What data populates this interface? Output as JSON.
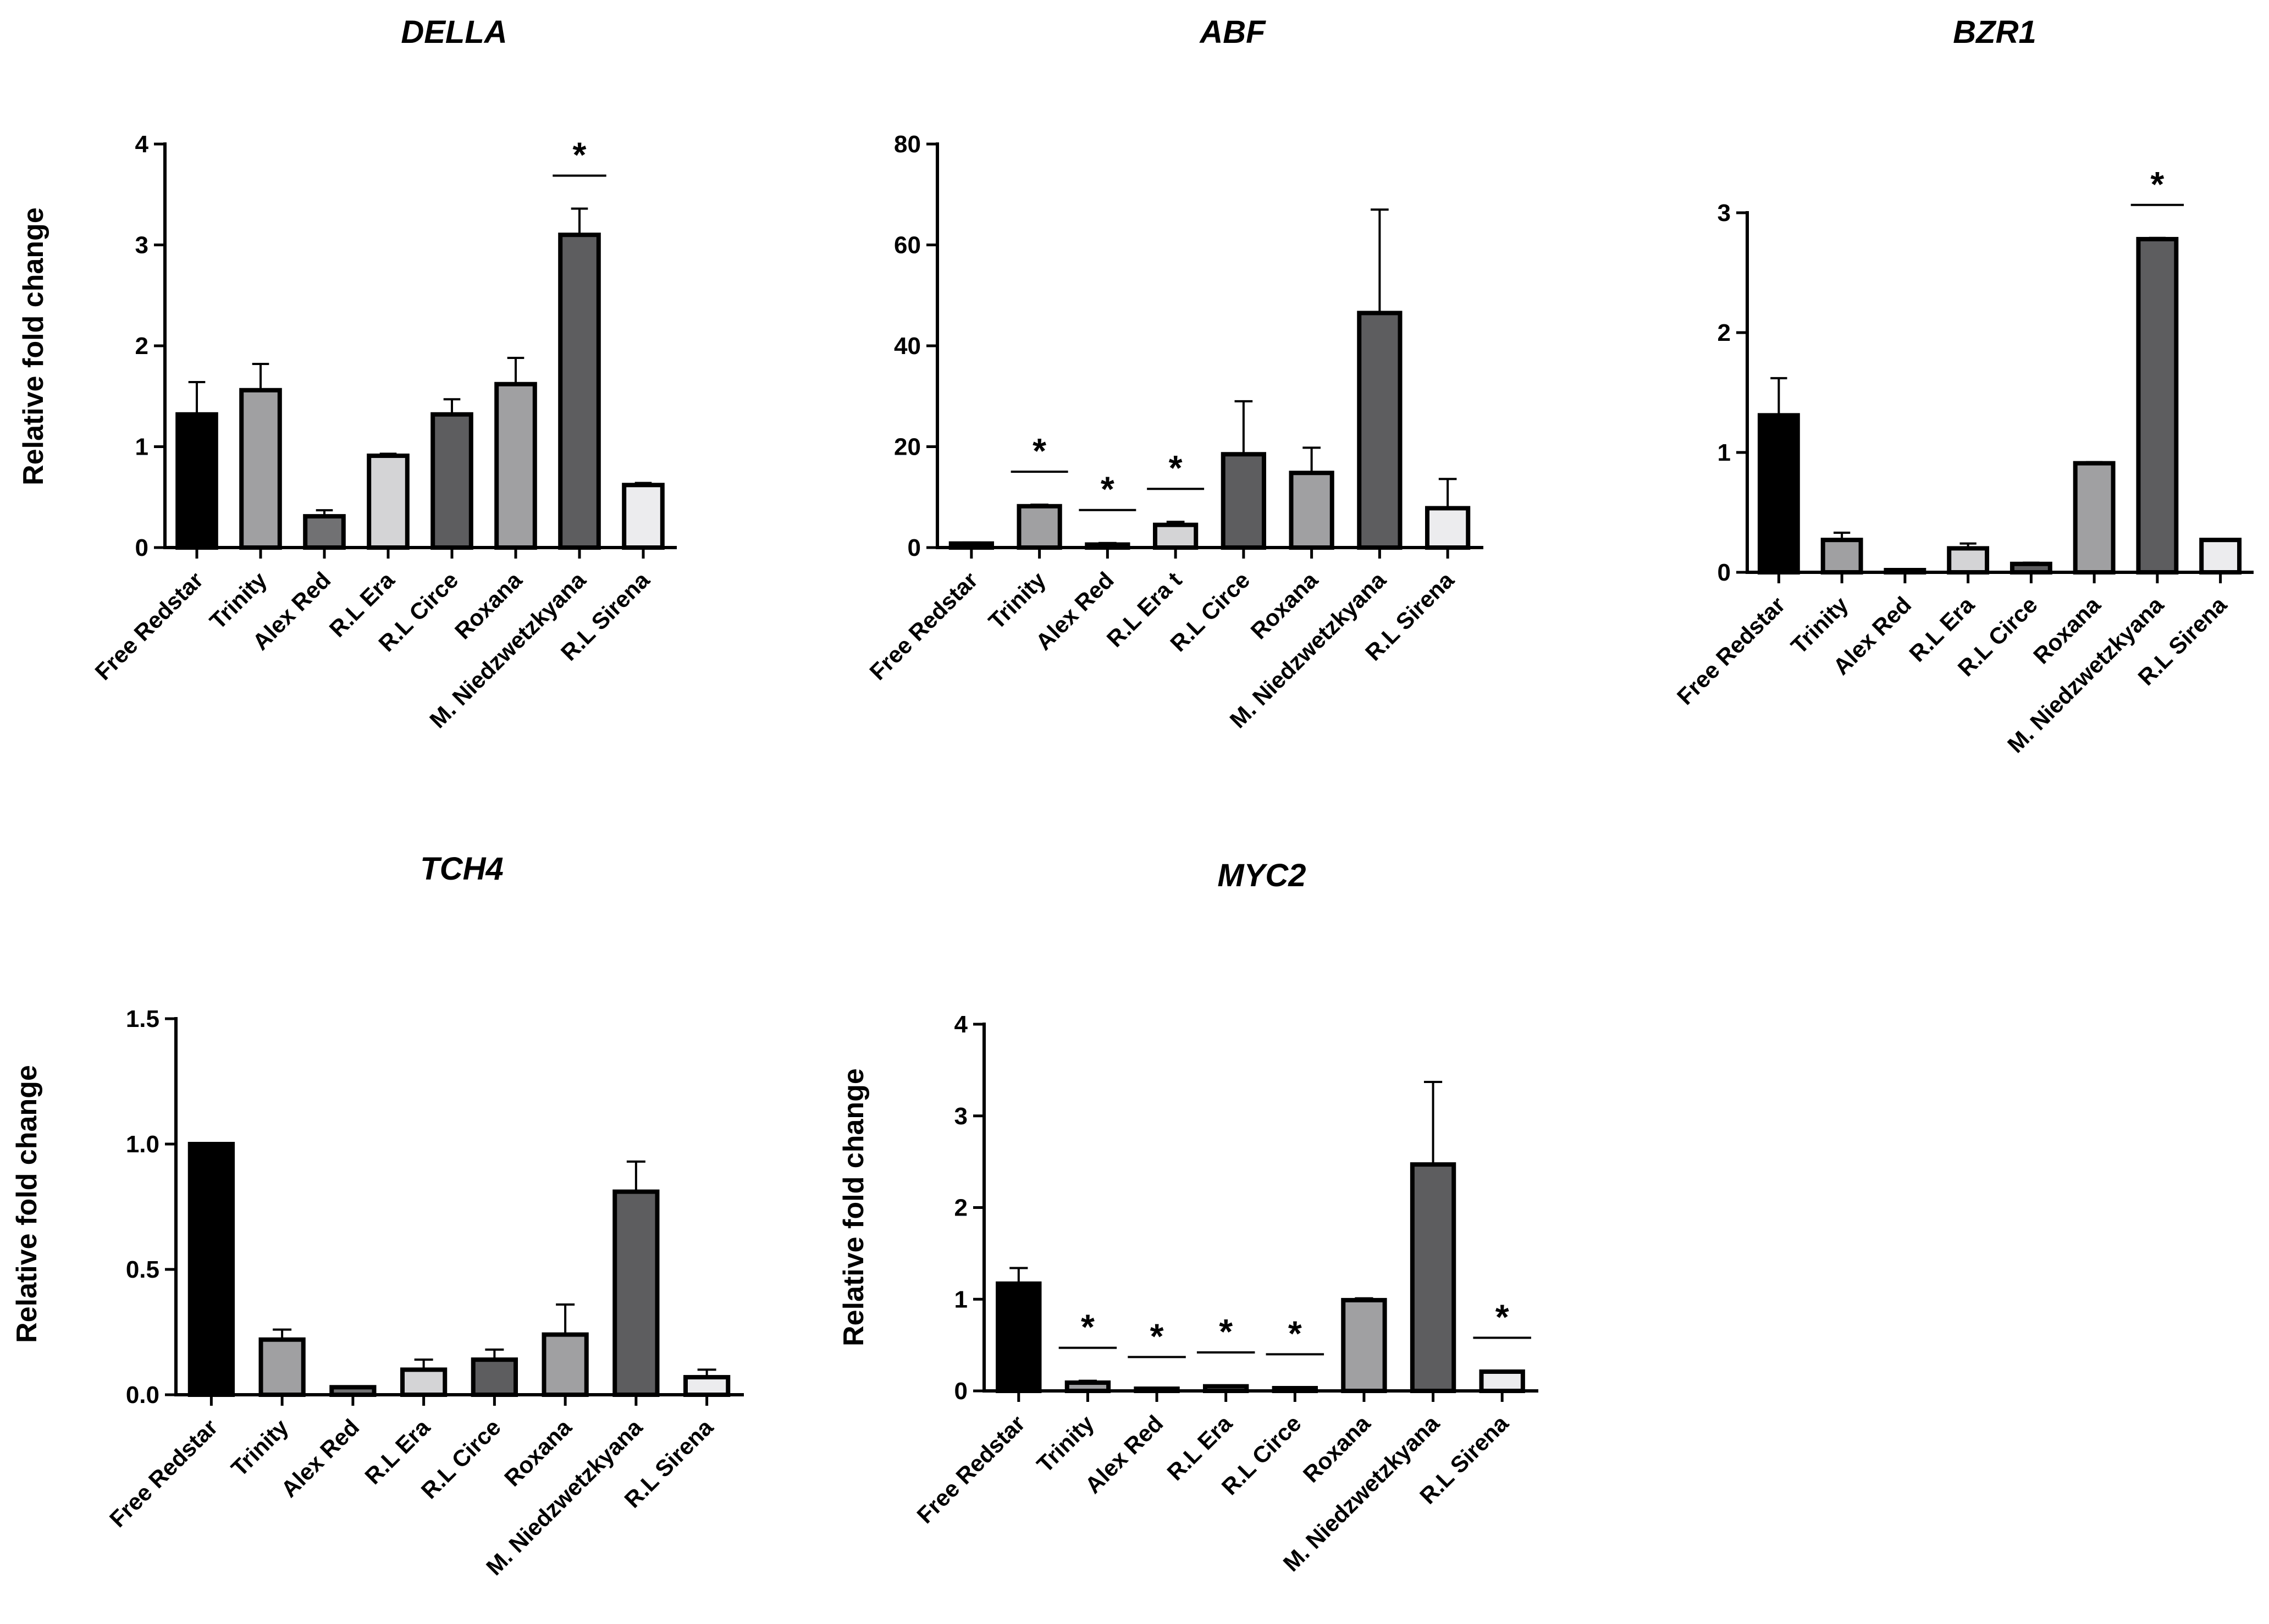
{
  "chart_data": [
    {
      "type": "bar",
      "title": "DELLA",
      "ylabel": "Relative fold change",
      "categories": [
        "Free Redstar",
        "Trinity",
        "Alex Red",
        "R.L Era",
        "R.L Circe",
        "Roxana",
        "M. Niedzwetzkyana",
        "R.L Sirena"
      ],
      "values": [
        1.32,
        1.56,
        0.31,
        0.91,
        1.32,
        1.62,
        3.1,
        0.62
      ],
      "errors": [
        0.32,
        0.26,
        0.06,
        0.02,
        0.15,
        0.26,
        0.26,
        0.02
      ],
      "significant": [
        false,
        false,
        false,
        false,
        false,
        false,
        true,
        false
      ],
      "yticks": [
        "0",
        "1",
        "2",
        "3",
        "4"
      ],
      "ylim": [
        0,
        4
      ],
      "colors": [
        "#000000",
        "#a0a0a2",
        "#717173",
        "#d4d4d6",
        "#5d5d5f",
        "#a0a0a2",
        "#5d5d5f",
        "#ececee"
      ]
    },
    {
      "type": "bar",
      "title": "ABF",
      "ylabel": "",
      "categories": [
        "Free Redstar",
        "Trinity",
        "Alex Red",
        "R.L Era t",
        "R.L Circe",
        "Roxana",
        "M. Niedzwetzkyana",
        "R.L Sirena"
      ],
      "values": [
        0.8,
        8.2,
        0.6,
        4.5,
        18.5,
        14.8,
        46.5,
        7.8
      ],
      "errors": [
        0.2,
        0.3,
        0.3,
        0.6,
        10.5,
        5.0,
        20.5,
        5.8
      ],
      "significant": [
        false,
        true,
        true,
        true,
        false,
        false,
        false,
        false
      ],
      "yticks": [
        "0",
        "20",
        "40",
        "60",
        "80"
      ],
      "ylim": [
        0,
        80
      ],
      "colors": [
        "#000000",
        "#a0a0a2",
        "#717173",
        "#d4d4d6",
        "#5d5d5f",
        "#a0a0a2",
        "#5d5d5f",
        "#ececee"
      ]
    },
    {
      "type": "bar",
      "title": "BZR1",
      "ylabel": "",
      "categories": [
        "Free Redstar",
        "Trinity",
        "Alex Red",
        "R.L Era",
        "R.L Circe",
        "Roxana",
        "M. Niedzwetzkyana",
        "R.L Sirena"
      ],
      "values": [
        1.31,
        0.27,
        0.01,
        0.2,
        0.07,
        0.91,
        2.78,
        0.27
      ],
      "errors": [
        0.31,
        0.06,
        0.0,
        0.04,
        0.01,
        0.01,
        0.01,
        0.0
      ],
      "significant": [
        false,
        false,
        false,
        false,
        false,
        false,
        true,
        false
      ],
      "yticks": [
        "0",
        "1",
        "2",
        "3"
      ],
      "ylim": [
        0,
        3
      ],
      "colors": [
        "#000000",
        "#a0a0a2",
        "#717173",
        "#d4d4d6",
        "#5d5d5f",
        "#a0a0a2",
        "#5d5d5f",
        "#ececee"
      ]
    },
    {
      "type": "bar",
      "title": "TCH4",
      "ylabel": "Relative fold change",
      "categories": [
        "Free Redstar",
        "Trinity",
        "Alex Red",
        "R.L Era",
        "R.L Circe",
        "Roxana",
        "M. Niedzwetzkyana",
        "R.L Sirena"
      ],
      "values": [
        1.0,
        0.22,
        0.03,
        0.1,
        0.14,
        0.24,
        0.81,
        0.07
      ],
      "errors": [
        0.0,
        0.04,
        0.0,
        0.04,
        0.04,
        0.12,
        0.12,
        0.03
      ],
      "significant": [
        false,
        false,
        false,
        false,
        false,
        false,
        false,
        false
      ],
      "yticks": [
        "0.0",
        "0.5",
        "1.0",
        "1.5"
      ],
      "ylim": [
        0,
        1.5
      ],
      "colors": [
        "#000000",
        "#a0a0a2",
        "#717173",
        "#d4d4d6",
        "#5d5d5f",
        "#a0a0a2",
        "#5d5d5f",
        "#ececee"
      ]
    },
    {
      "type": "bar",
      "title": "MYC2",
      "ylabel": "Relative fold change",
      "categories": [
        "Free Redstar",
        "Trinity",
        "Alex Red",
        "R.L Era",
        "R.L Circe",
        "Roxana",
        "M. Niedzwetzkyana",
        "R.L Sirena"
      ],
      "values": [
        1.17,
        0.09,
        0.01,
        0.05,
        0.03,
        0.99,
        2.47,
        0.21
      ],
      "errors": [
        0.17,
        0.02,
        0.0,
        0.01,
        0.01,
        0.02,
        0.9,
        0.01
      ],
      "significant": [
        false,
        true,
        true,
        true,
        true,
        false,
        false,
        true
      ],
      "yticks": [
        "0",
        "1",
        "2",
        "3",
        "4"
      ],
      "ylim": [
        0,
        4
      ],
      "colors": [
        "#000000",
        "#a0a0a2",
        "#717173",
        "#d4d4d6",
        "#5d5d5f",
        "#a0a0a2",
        "#5d5d5f",
        "#ececee"
      ]
    }
  ],
  "significance_symbol": "*"
}
